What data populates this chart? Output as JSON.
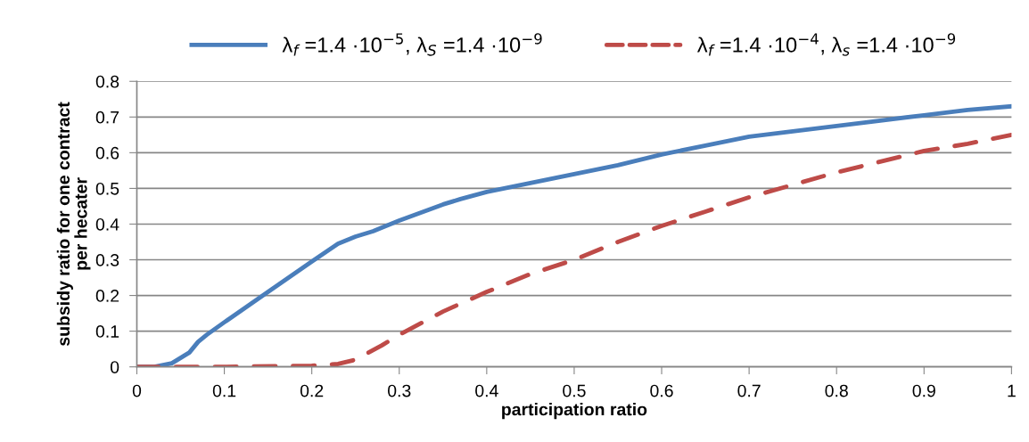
{
  "chart_data": {
    "type": "line",
    "xlabel": "participation ratio",
    "ylabel": "subsidy ratio for one contract\nper hecater",
    "xlim": [
      0,
      1
    ],
    "xticks": [
      0,
      0.1,
      0.2,
      0.3,
      0.4,
      0.5,
      0.6,
      0.7,
      0.8,
      0.9,
      1
    ],
    "ylim": [
      0,
      0.8
    ],
    "yticks": [
      0,
      0.1,
      0.2,
      0.3,
      0.4,
      0.5,
      0.6,
      0.7,
      0.8
    ],
    "grid": "y",
    "legend": "top",
    "marker": "none",
    "series": [
      {
        "name": "λ$_{f}$ =1.4 ·10$^{−5}$, λ$_{S}$ =1.4 ·10$^{−9}$",
        "color": "#4a7ebb",
        "line_style": "solid",
        "x": [
          0,
          0.02,
          0.04,
          0.06,
          0.07,
          0.08,
          0.1,
          0.15,
          0.2,
          0.23,
          0.25,
          0.27,
          0.3,
          0.35,
          0.37,
          0.4,
          0.45,
          0.5,
          0.55,
          0.6,
          0.65,
          0.68,
          0.7,
          0.75,
          0.8,
          0.85,
          0.9,
          0.95,
          1
        ],
        "values": [
          0,
          0,
          0.01,
          0.04,
          0.07,
          0.09,
          0.125,
          0.21,
          0.295,
          0.345,
          0.365,
          0.38,
          0.41,
          0.455,
          0.47,
          0.49,
          0.515,
          0.54,
          0.565,
          0.595,
          0.62,
          0.635,
          0.645,
          0.66,
          0.675,
          0.69,
          0.705,
          0.72,
          0.73
        ]
      },
      {
        "name": "λ$_{f}$ =1.4 ·10$^{−4}$, λ$_{s}$ =1.4 ·10$^{−9}$",
        "color": "#be4b48",
        "line_style": "dashed",
        "x": [
          0,
          0.1,
          0.2,
          0.23,
          0.25,
          0.28,
          0.3,
          0.35,
          0.4,
          0.45,
          0.5,
          0.55,
          0.6,
          0.65,
          0.7,
          0.75,
          0.8,
          0.85,
          0.9,
          0.95,
          1
        ],
        "values": [
          0,
          0,
          0.003,
          0.008,
          0.02,
          0.06,
          0.09,
          0.155,
          0.21,
          0.26,
          0.3,
          0.35,
          0.395,
          0.435,
          0.475,
          0.51,
          0.545,
          0.575,
          0.605,
          0.625,
          0.65
        ]
      }
    ]
  }
}
